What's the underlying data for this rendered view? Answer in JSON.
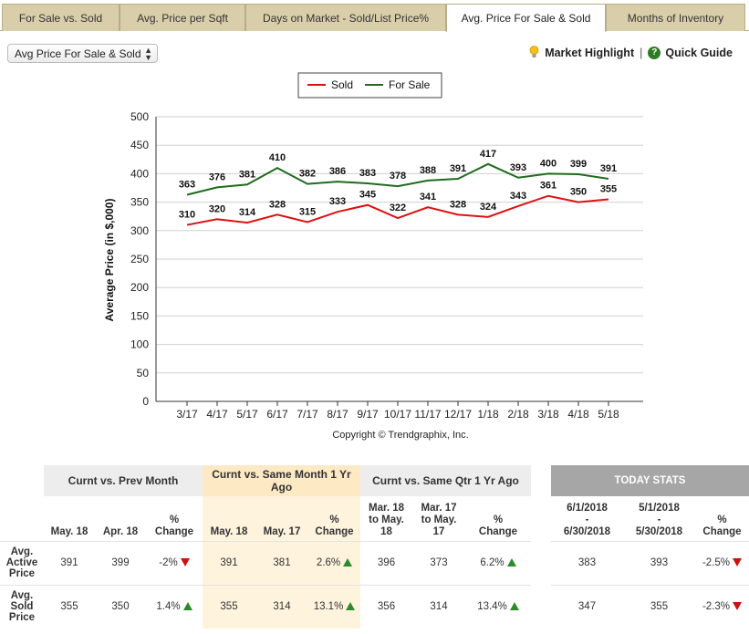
{
  "tabs": [
    {
      "label": "For Sale vs. Sold",
      "active": false
    },
    {
      "label": "Avg. Price per Sqft",
      "active": false
    },
    {
      "label": "Days on Market - Sold/List Price%",
      "active": false
    },
    {
      "label": "Avg. Price For Sale & Sold",
      "active": true
    },
    {
      "label": "Months of Inventory",
      "active": false
    }
  ],
  "select": {
    "value": "Avg Price For Sale & Sold"
  },
  "links": {
    "market_highlight": "Market Highlight",
    "separator": "|",
    "quick_guide": "Quick Guide"
  },
  "colors": {
    "sold": "#dd1111",
    "for_sale": "#1f6a1f"
  },
  "chart_data": {
    "type": "line",
    "ylabel": "Average Price (in $,000)",
    "ylim": [
      0,
      500
    ],
    "yticks": [
      0,
      50,
      100,
      150,
      200,
      250,
      300,
      350,
      400,
      450,
      500
    ],
    "grid": true,
    "legend": "top-center",
    "categories": [
      "3/17",
      "4/17",
      "5/17",
      "6/17",
      "7/17",
      "8/17",
      "9/17",
      "10/17",
      "11/17",
      "12/17",
      "1/18",
      "2/18",
      "3/18",
      "4/18",
      "5/18"
    ],
    "series": [
      {
        "name": "Sold",
        "color": "#dd1111",
        "values": [
          310,
          320,
          314,
          328,
          315,
          333,
          345,
          322,
          341,
          328,
          324,
          343,
          361,
          350,
          355
        ]
      },
      {
        "name": "For Sale",
        "color": "#1f6a1f",
        "values": [
          363,
          376,
          381,
          410,
          382,
          386,
          383,
          378,
          388,
          391,
          417,
          393,
          400,
          399,
          391
        ]
      }
    ],
    "credit": "Copyright © Trendgraphix, Inc."
  },
  "stats": {
    "groups": {
      "prev_month": "Curnt vs. Prev Month",
      "same_month": "Curnt vs. Same Month 1 Yr Ago",
      "same_qtr": "Curnt vs. Same Qtr 1 Yr Ago",
      "today": "TODAY STATS"
    },
    "columns": {
      "c1": "May. 18",
      "c2": "Apr. 18",
      "c3_a": "%",
      "c3_b": "Change",
      "c4": "May. 18",
      "c5": "May. 17",
      "c6_a": "%",
      "c6_b": "Change",
      "c7_a": "Mar. 18",
      "c7_b": "to May.",
      "c7_c": "18",
      "c8_a": "Mar. 17",
      "c8_b": "to May.",
      "c8_c": "17",
      "c9_a": "%",
      "c9_b": "Change",
      "c10_a": "6/1/2018",
      "c10_b": "-",
      "c10_c": "6/30/2018",
      "c11_a": "5/1/2018",
      "c11_b": "-",
      "c11_c": "5/30/2018",
      "c12_a": "%",
      "c12_b": "Change"
    },
    "rows": [
      {
        "label_a": "Avg.",
        "label_b": "Active",
        "label_c": "Price",
        "v1": "391",
        "v2": "399",
        "v3": "-2%",
        "v3_dir": "down",
        "v4": "391",
        "v5": "381",
        "v6": "2.6%",
        "v6_dir": "up",
        "v7": "396",
        "v8": "373",
        "v9": "6.2%",
        "v9_dir": "up",
        "v10": "383",
        "v11": "393",
        "v12": "-2.5%",
        "v12_dir": "down"
      },
      {
        "label_a": "Avg.",
        "label_b": "Sold",
        "label_c": "Price",
        "v1": "355",
        "v2": "350",
        "v3": "1.4%",
        "v3_dir": "up",
        "v4": "355",
        "v5": "314",
        "v6": "13.1%",
        "v6_dir": "up",
        "v7": "356",
        "v8": "314",
        "v9": "13.4%",
        "v9_dir": "up",
        "v10": "347",
        "v11": "355",
        "v12": "-2.3%",
        "v12_dir": "down"
      }
    ]
  }
}
